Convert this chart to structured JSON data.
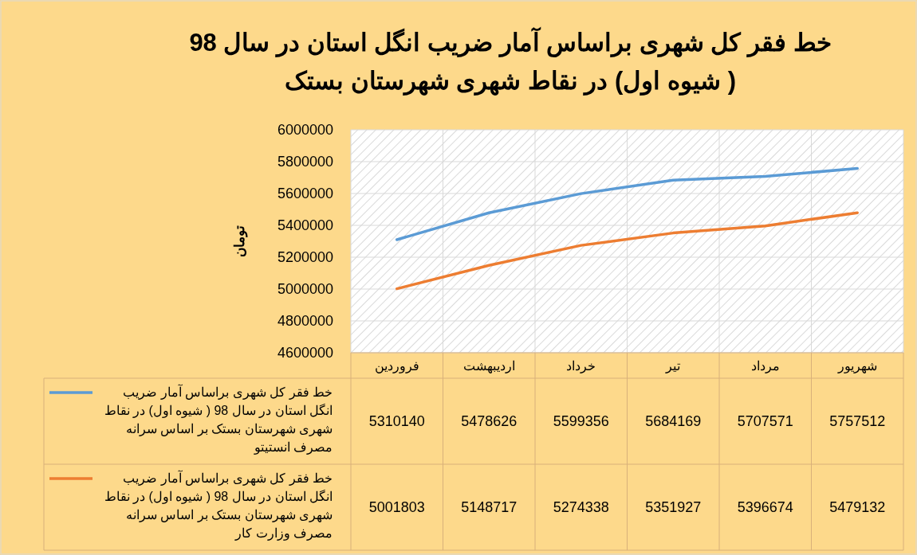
{
  "chart_data": {
    "type": "line",
    "title": "خط فقر کل شهری براساس آمار ضریب انگل استان در سال 98 ( شیوه اول) در نقاط  شهری شهرستان بستک",
    "ylabel": "تومان",
    "categories": [
      "فروردین",
      "اردیبهشت",
      "خرداد",
      "تیر",
      "مرداد",
      "شهریور"
    ],
    "series": [
      {
        "name": "خط فقر کل شهری  براساس آمار ضریب انگل استان در سال 98 ( شیوه اول) در نقاط شهری شهرستان بستک بر اساس سرانه مصرف انستیتو",
        "color": "#5b9bd5",
        "values": [
          5310140,
          5478626,
          5599356,
          5684169,
          5707571,
          5757512
        ]
      },
      {
        "name": "خط فقر کل شهری  براساس آمار ضریب انگل استان در سال 98 ( شیوه اول) در نقاط شهری شهرستان بستک بر اساس سرانه مصرف وزارت کار",
        "color": "#ed7d31",
        "values": [
          5001803,
          5148717,
          5274338,
          5351927,
          5396674,
          5479132
        ]
      }
    ],
    "ylim": [
      4600000,
      6000000
    ],
    "yticks": [
      4600000,
      4800000,
      5000000,
      5200000,
      5400000,
      5600000,
      5800000,
      6000000
    ],
    "grid": true,
    "legend": "bottom",
    "data_labels": true,
    "marker": "none",
    "line_style": "solid"
  }
}
